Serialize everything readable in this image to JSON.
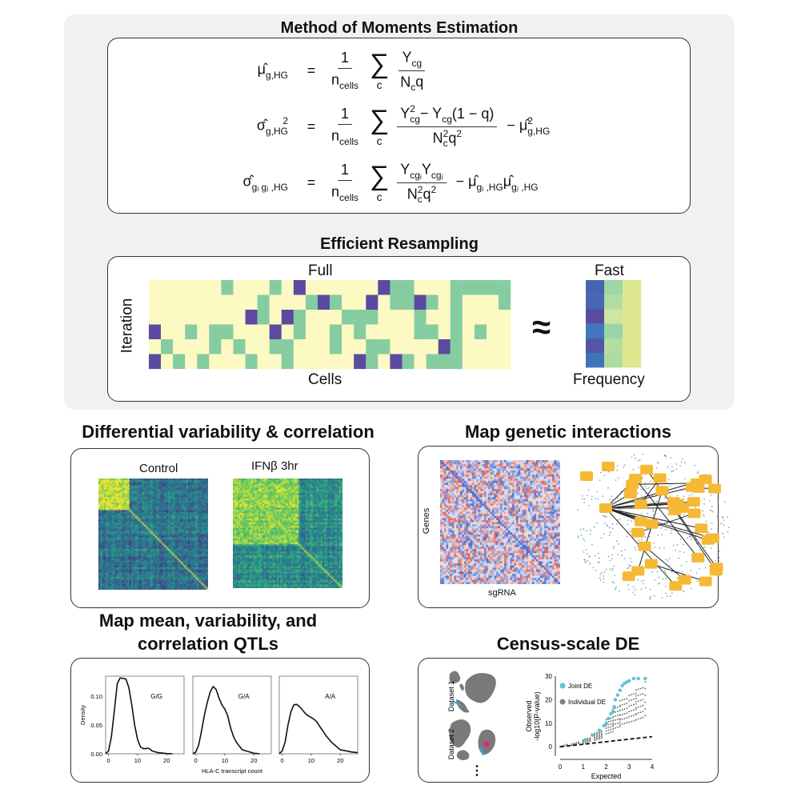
{
  "top_panel": {
    "moments_title": "Method of Moments Estimation",
    "formulas": [
      {
        "lhs": [
          {
            "b": "μ̂",
            "sub": "g,HG"
          }
        ],
        "eq": "=",
        "pre_num": [
          {
            "b": "1"
          }
        ],
        "pre_den": [
          {
            "b": "n",
            "sub": "cells"
          }
        ],
        "sum": "∑",
        "sum_idx": "c",
        "num": [
          {
            "b": "Y",
            "sub": "cg"
          }
        ],
        "den": [
          {
            "b": "N",
            "sub": "c"
          },
          {
            "b": "q"
          }
        ],
        "tail": []
      },
      {
        "lhs": [
          {
            "b": "σ̂",
            "sub": "g,HG",
            "sup": "2"
          }
        ],
        "eq": "=",
        "pre_num": [
          {
            "b": "1"
          }
        ],
        "pre_den": [
          {
            "b": "n",
            "sub": "cells"
          }
        ],
        "sum": "∑",
        "sum_idx": "c",
        "num": [
          {
            "b": "Y",
            "sub": "cg",
            "sup": "2"
          },
          {
            "b": " − Y",
            "sub": "cg"
          },
          {
            "b": "(1 − q)"
          }
        ],
        "den": [
          {
            "b": "N",
            "sub": "c",
            "sup": "2"
          },
          {
            "b": "q",
            "sup": "2"
          }
        ],
        "tail": [
          {
            "b": "− μ̂",
            "sub": "g,HG",
            "sup": "2"
          }
        ]
      },
      {
        "lhs": [
          {
            "b": "σ̂",
            "sub": "gᵢ gⱼ ,HG"
          }
        ],
        "eq": "=",
        "pre_num": [
          {
            "b": "1"
          }
        ],
        "pre_den": [
          {
            "b": "n",
            "sub": "cells"
          }
        ],
        "sum": "∑",
        "sum_idx": "c",
        "num": [
          {
            "b": "Y",
            "sub": "cgᵢ"
          },
          {
            "b": " Y",
            "sub": "cgⱼ"
          }
        ],
        "den": [
          {
            "b": "N",
            "sub": "c",
            "sup": "2"
          },
          {
            "b": "q",
            "sup": "2"
          }
        ],
        "tail": [
          {
            "b": "− μ̂",
            "sub": "gᵢ ,HG"
          },
          {
            "b": " μ̂",
            "sub": "gⱼ ,HG"
          }
        ]
      }
    ],
    "resampling_title": "Efficient Resampling",
    "full_label": "Full",
    "cells_label": "Cells",
    "iteration_label": "Iteration",
    "approx_symbol": "≈",
    "fast_label": "Fast",
    "frequency_label": "Frequency",
    "colors": {
      "zero": "#fdf9c2",
      "one": "#86cca1",
      "two": "#5b4ba0"
    },
    "full_matrix": [
      [
        0,
        0,
        0,
        0,
        0,
        0,
        1,
        0,
        0,
        0,
        1,
        0,
        2,
        0,
        0,
        0,
        0,
        0,
        0,
        2,
        1,
        1,
        0,
        0,
        0,
        1,
        1,
        1,
        1,
        1
      ],
      [
        0,
        0,
        0,
        0,
        0,
        0,
        0,
        0,
        0,
        1,
        0,
        0,
        0,
        1,
        2,
        1,
        0,
        0,
        2,
        0,
        1,
        1,
        2,
        1,
        0,
        1,
        0,
        0,
        0,
        1
      ],
      [
        0,
        0,
        0,
        0,
        0,
        0,
        0,
        0,
        2,
        1,
        0,
        2,
        1,
        0,
        0,
        0,
        1,
        1,
        1,
        0,
        0,
        0,
        1,
        0,
        0,
        1,
        0,
        0,
        0,
        0
      ],
      [
        2,
        0,
        0,
        1,
        0,
        1,
        1,
        0,
        0,
        0,
        2,
        0,
        1,
        0,
        0,
        1,
        0,
        1,
        0,
        0,
        0,
        0,
        1,
        1,
        0,
        1,
        0,
        1,
        0,
        0
      ],
      [
        0,
        1,
        0,
        0,
        0,
        1,
        0,
        1,
        0,
        0,
        1,
        1,
        0,
        0,
        0,
        1,
        0,
        0,
        1,
        1,
        0,
        0,
        0,
        0,
        2,
        1,
        0,
        0,
        0,
        0
      ],
      [
        2,
        0,
        1,
        0,
        1,
        0,
        0,
        0,
        1,
        0,
        0,
        1,
        0,
        0,
        0,
        0,
        0,
        2,
        1,
        0,
        2,
        1,
        0,
        1,
        1,
        1,
        0,
        0,
        0,
        0
      ]
    ],
    "fast_matrix_colors": [
      [
        "#4565b0",
        "#9fd6a5",
        "#dde88f"
      ],
      [
        "#4668b3",
        "#b3dca0",
        "#dde88f"
      ],
      [
        "#5a4aa0",
        "#cde6a0",
        "#dde88f"
      ],
      [
        "#3f78bc",
        "#98d4a8",
        "#dde88f"
      ],
      [
        "#5555a8",
        "#b5dd9f",
        "#dde88f"
      ],
      [
        "#3f74ba",
        "#b0db9e",
        "#dde88f"
      ]
    ]
  },
  "diff_var": {
    "title": "Differential variability & correlation",
    "control_label": "Control",
    "ifn_label": "IFNβ 3hr"
  },
  "genetic": {
    "title": "Map genetic interactions",
    "genes_label": "Genes",
    "sgrna_label": "sgRNA"
  },
  "qtl": {
    "title_line1": "Map mean, variability, and",
    "title_line2": "correlation QTLs"
  },
  "census": {
    "title": "Census-scale DE",
    "dataset1_label": "Dataset 1",
    "dataset2_label": "Dataset 2",
    "ellipsis": "⋮"
  },
  "chart_data": [
    {
      "type": "line",
      "panels": [
        {
          "label": "G/G",
          "x": [
            -1,
            0,
            1,
            2,
            3,
            4,
            5,
            6,
            7,
            8,
            9,
            10,
            11,
            12,
            13,
            13.5,
            14,
            15,
            17,
            20,
            22
          ],
          "y": [
            0,
            0.005,
            0.03,
            0.075,
            0.122,
            0.132,
            0.131,
            0.13,
            0.115,
            0.085,
            0.05,
            0.025,
            0.012,
            0.009,
            0.009,
            0.01,
            0.009,
            0.005,
            0.002,
            0.0005,
            0
          ]
        },
        {
          "label": "G/A",
          "x": [
            -1,
            0,
            1,
            2,
            3,
            4,
            5,
            6,
            7,
            8,
            9,
            10,
            11,
            12,
            13,
            14,
            16,
            18,
            20,
            22
          ],
          "y": [
            0,
            0.003,
            0.015,
            0.04,
            0.068,
            0.09,
            0.108,
            0.117,
            0.112,
            0.097,
            0.085,
            0.078,
            0.066,
            0.045,
            0.03,
            0.02,
            0.007,
            0.004,
            0.001,
            0
          ]
        },
        {
          "label": "A/A",
          "x": [
            -1,
            0,
            1,
            2,
            3,
            4,
            5,
            6,
            7,
            8,
            9,
            10,
            11,
            12,
            13,
            14,
            15,
            17,
            20,
            24,
            26
          ],
          "y": [
            0,
            0.005,
            0.02,
            0.05,
            0.073,
            0.085,
            0.086,
            0.082,
            0.076,
            0.07,
            0.066,
            0.063,
            0.06,
            0.055,
            0.047,
            0.04,
            0.032,
            0.02,
            0.007,
            0.003,
            0.002
          ]
        }
      ],
      "xlabel": "HLA-C transcript count",
      "ylabel": "Density",
      "xlim": [
        -1,
        26
      ],
      "ylim": [
        0,
        0.135
      ],
      "xticks": [
        "0",
        "10",
        "20"
      ],
      "yticks": [
        "0.00",
        "0.05",
        "0.10"
      ],
      "line_color": "#111111"
    },
    {
      "type": "scatter",
      "xlabel": "Expected",
      "ylabel_line1": "Observed",
      "ylabel_line2": "-log10(P-value)",
      "xlim": [
        0,
        4
      ],
      "ylim": [
        -4,
        30
      ],
      "xticks": [
        "0",
        "1",
        "2",
        "3",
        "4"
      ],
      "yticks": [
        "0",
        "10",
        "20",
        "30"
      ],
      "legend_position": "top-left",
      "series": [
        {
          "name": "Joint DE",
          "color": "#5cc4d8",
          "x": [
            1.1,
            1.4,
            1.7,
            1.9,
            2.0,
            2.1,
            2.2,
            2.3,
            2.35,
            2.4,
            2.5,
            2.6,
            2.7,
            2.8,
            2.9,
            3.0,
            3.2,
            3.4,
            3.7
          ],
          "y": [
            3,
            5,
            7,
            9,
            10,
            12,
            14,
            15,
            17,
            20,
            22,
            24,
            26,
            27,
            27.5,
            28,
            29,
            29,
            29
          ]
        },
        {
          "name": "Individual DE",
          "color": "#808080",
          "x": [
            0,
            0.5,
            1.0,
            1.5,
            2.0,
            2.3,
            2.6,
            3.0,
            3.3,
            3.7
          ],
          "y": [
            0,
            1,
            2.5,
            5,
            10,
            14,
            17,
            19,
            21,
            24
          ]
        }
      ],
      "reference_line": {
        "style": "dashed",
        "x": [
          0,
          4
        ],
        "y": [
          0,
          4.3
        ]
      }
    }
  ]
}
